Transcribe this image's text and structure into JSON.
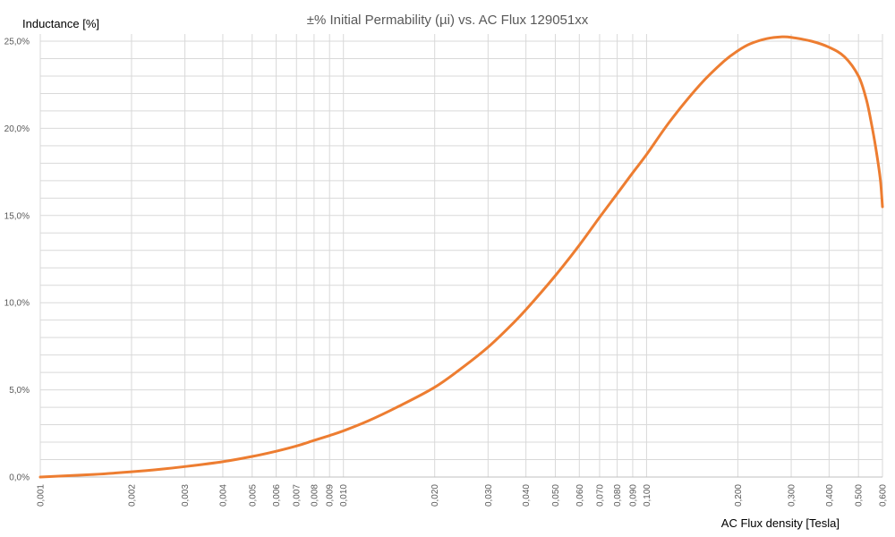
{
  "chart_data": {
    "type": "line",
    "title": "±% Initial Permability (µi) vs. AC Flux 129051xx",
    "xlabel": "AC Flux density [Tesla]",
    "ylabel": "Inductance [%]",
    "x_scale": "log",
    "xlim": [
      0.001,
      0.6
    ],
    "ylim": [
      0,
      0.25
    ],
    "grid": true,
    "legend": "none",
    "x_ticks": [
      {
        "value": 0.001,
        "label": "0,001"
      },
      {
        "value": 0.002,
        "label": "0,002"
      },
      {
        "value": 0.003,
        "label": "0,003"
      },
      {
        "value": 0.004,
        "label": "0,004"
      },
      {
        "value": 0.005,
        "label": "0,005"
      },
      {
        "value": 0.006,
        "label": "0,006"
      },
      {
        "value": 0.007,
        "label": "0,007"
      },
      {
        "value": 0.008,
        "label": "0,008"
      },
      {
        "value": 0.009,
        "label": "0,009"
      },
      {
        "value": 0.01,
        "label": "0,010"
      },
      {
        "value": 0.02,
        "label": "0,020"
      },
      {
        "value": 0.03,
        "label": "0,030"
      },
      {
        "value": 0.04,
        "label": "0,040"
      },
      {
        "value": 0.05,
        "label": "0,050"
      },
      {
        "value": 0.06,
        "label": "0,060"
      },
      {
        "value": 0.07,
        "label": "0,070"
      },
      {
        "value": 0.08,
        "label": "0,080"
      },
      {
        "value": 0.09,
        "label": "0,090"
      },
      {
        "value": 0.1,
        "label": "0,100"
      },
      {
        "value": 0.2,
        "label": "0,200"
      },
      {
        "value": 0.3,
        "label": "0,300"
      },
      {
        "value": 0.4,
        "label": "0,400"
      },
      {
        "value": 0.5,
        "label": "0,500"
      },
      {
        "value": 0.6,
        "label": "0,600"
      }
    ],
    "y_ticks": [
      {
        "value": 0.0,
        "label": "0,0%"
      },
      {
        "value": 0.05,
        "label": "5,0%"
      },
      {
        "value": 0.1,
        "label": "10,0%"
      },
      {
        "value": 0.15,
        "label": "15,0%"
      },
      {
        "value": 0.2,
        "label": "20,0%"
      },
      {
        "value": 0.25,
        "label": "25,0%"
      }
    ],
    "y_minor_step": 0.01,
    "colors": {
      "series": "#ed7d31",
      "grid": "#d9d9d9",
      "text": "#595959"
    },
    "series": [
      {
        "x": [
          0.001,
          0.0015,
          0.002,
          0.0025,
          0.003,
          0.004,
          0.005,
          0.006,
          0.007,
          0.008,
          0.009,
          0.01,
          0.012,
          0.015,
          0.02,
          0.025,
          0.03,
          0.035,
          0.04,
          0.05,
          0.06,
          0.07,
          0.08,
          0.09,
          0.1,
          0.12,
          0.15,
          0.18,
          0.2,
          0.22,
          0.25,
          0.28,
          0.3,
          0.35,
          0.4,
          0.45,
          0.5,
          0.53,
          0.55,
          0.57,
          0.59,
          0.6
        ],
        "values": [
          0.0,
          0.0015,
          0.003,
          0.0045,
          0.006,
          0.0088,
          0.0118,
          0.0148,
          0.0178,
          0.021,
          0.0238,
          0.0265,
          0.032,
          0.04,
          0.0515,
          0.0635,
          0.0745,
          0.0855,
          0.096,
          0.1155,
          0.133,
          0.149,
          0.1625,
          0.1745,
          0.185,
          0.2045,
          0.225,
          0.2385,
          0.2445,
          0.2485,
          0.2515,
          0.2525,
          0.2522,
          0.25,
          0.2465,
          0.241,
          0.23,
          0.217,
          0.204,
          0.189,
          0.171,
          0.155
        ]
      }
    ]
  }
}
